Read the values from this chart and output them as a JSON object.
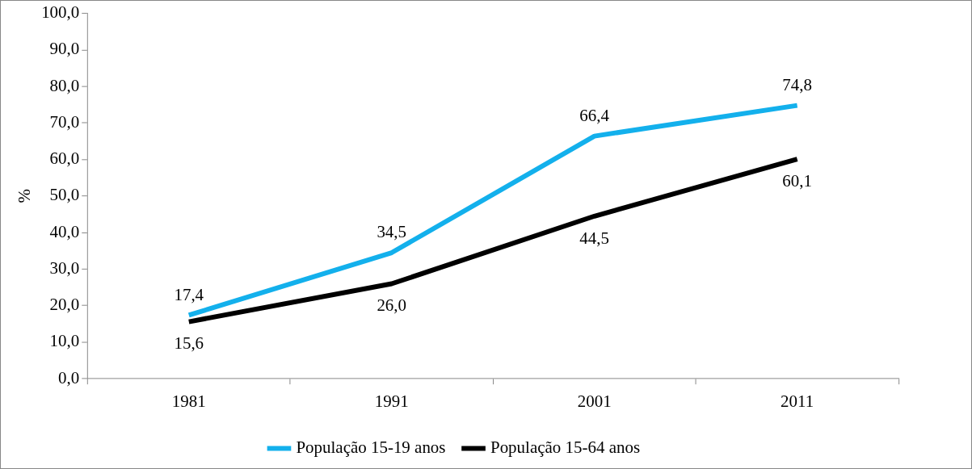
{
  "chart_data": {
    "type": "line",
    "ylabel": "%",
    "categories": [
      "1981",
      "1991",
      "2001",
      "2011"
    ],
    "series": [
      {
        "name": "População 15-19 anos",
        "color": "#13b0ec",
        "values": [
          17.4,
          34.5,
          66.4,
          74.8
        ],
        "value_labels": [
          "17,4",
          "34,5",
          "66,4",
          "74,8"
        ]
      },
      {
        "name": "População 15-64 anos",
        "color": "#000000",
        "values": [
          15.6,
          26.0,
          44.5,
          60.1
        ],
        "value_labels": [
          "15,6",
          "26,0",
          "44,5",
          "60,1"
        ]
      }
    ],
    "ylim": [
      0,
      100
    ],
    "yticks": [
      {
        "value": 0,
        "label": "0,0"
      },
      {
        "value": 10,
        "label": "10,0"
      },
      {
        "value": 20,
        "label": "20,0"
      },
      {
        "value": 30,
        "label": "30,0"
      },
      {
        "value": 40,
        "label": "40,0"
      },
      {
        "value": 50,
        "label": "50,0"
      },
      {
        "value": 60,
        "label": "60,0"
      },
      {
        "value": 70,
        "label": "70,0"
      },
      {
        "value": 80,
        "label": "80,0"
      },
      {
        "value": 90,
        "label": "90,0"
      },
      {
        "value": 100,
        "label": "100,0"
      }
    ],
    "grid": false,
    "legend": "bottom",
    "marker": "none",
    "line_style": "solid"
  }
}
